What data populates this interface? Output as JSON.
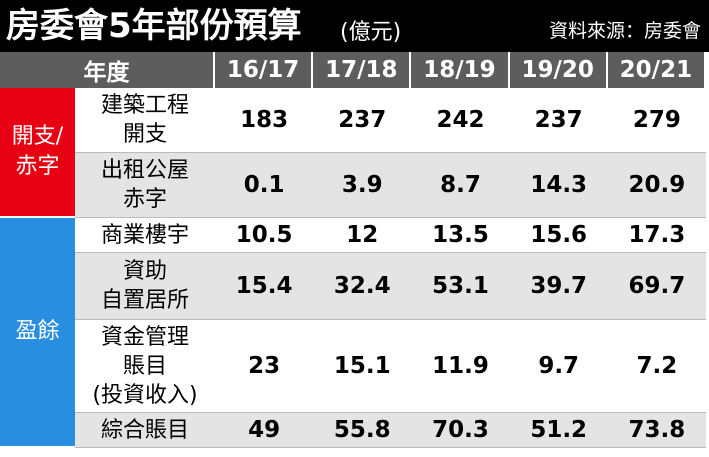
{
  "header": {
    "title": "房委會5年部份預算",
    "unit": "(億元)",
    "source": "資料來源：房委會"
  },
  "table": {
    "corner": "年度",
    "columns": [
      "16/17",
      "17/18",
      "18/19",
      "19/20",
      "20/21"
    ],
    "groups": [
      {
        "label": [
          "開支/",
          "赤字"
        ],
        "rows": [
          {
            "label": [
              "建築工程",
              "開支"
            ],
            "values": [
              183,
              237,
              242,
              237,
              279
            ]
          },
          {
            "label": [
              "出租公屋",
              "赤字"
            ],
            "values": [
              0.1,
              3.9,
              8.7,
              14.3,
              20.9
            ]
          }
        ]
      },
      {
        "label": [
          "盈餘"
        ],
        "rows": [
          {
            "label": [
              "商業樓宇"
            ],
            "values": [
              10.5,
              12,
              13.5,
              15.6,
              17.3
            ]
          },
          {
            "label": [
              "資助",
              "自置居所"
            ],
            "values": [
              15.4,
              32.4,
              53.1,
              39.7,
              69.7
            ]
          },
          {
            "label": [
              "資金管理",
              "賬目",
              "(投資收入)"
            ],
            "values": [
              23,
              15.1,
              11.9,
              9.7,
              7.2
            ]
          },
          {
            "label": [
              "綜合賬目"
            ],
            "values": [
              49,
              55.8,
              70.3,
              51.2,
              73.8
            ]
          }
        ]
      }
    ]
  }
}
